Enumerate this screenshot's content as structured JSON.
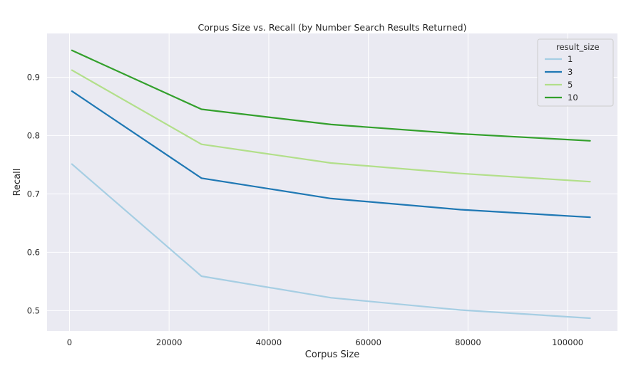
{
  "chart_data": {
    "type": "line",
    "title": "Corpus Size vs. Recall (by Number Search Results Returned)",
    "xlabel": "Corpus Size",
    "ylabel": "Recall",
    "xlim": [
      -4500,
      110000
    ],
    "ylim": [
      0.465,
      0.975
    ],
    "xticks": [
      0,
      20000,
      40000,
      60000,
      80000,
      100000
    ],
    "yticks": [
      0.5,
      0.6,
      0.7,
      0.8,
      0.9
    ],
    "xtick_labels": [
      "0",
      "20000",
      "40000",
      "60000",
      "80000",
      "100000"
    ],
    "ytick_labels": [
      "0.5",
      "0.6",
      "0.7",
      "0.8",
      "0.9"
    ],
    "grid": true,
    "background": "#eaeaf2",
    "legend": {
      "title": "result_size",
      "placement": "top-right"
    },
    "x": [
      500,
      26500,
      52500,
      78500,
      104500
    ],
    "series": [
      {
        "name": "1",
        "color": "#a6cee3",
        "values": [
          0.751,
          0.559,
          0.522,
          0.501,
          0.487
        ]
      },
      {
        "name": "3",
        "color": "#1f78b4",
        "values": [
          0.876,
          0.727,
          0.692,
          0.673,
          0.66
        ]
      },
      {
        "name": "5",
        "color": "#b2df8a",
        "values": [
          0.912,
          0.785,
          0.753,
          0.735,
          0.721
        ]
      },
      {
        "name": "10",
        "color": "#33a02c",
        "values": [
          0.946,
          0.845,
          0.819,
          0.803,
          0.791
        ]
      }
    ]
  }
}
